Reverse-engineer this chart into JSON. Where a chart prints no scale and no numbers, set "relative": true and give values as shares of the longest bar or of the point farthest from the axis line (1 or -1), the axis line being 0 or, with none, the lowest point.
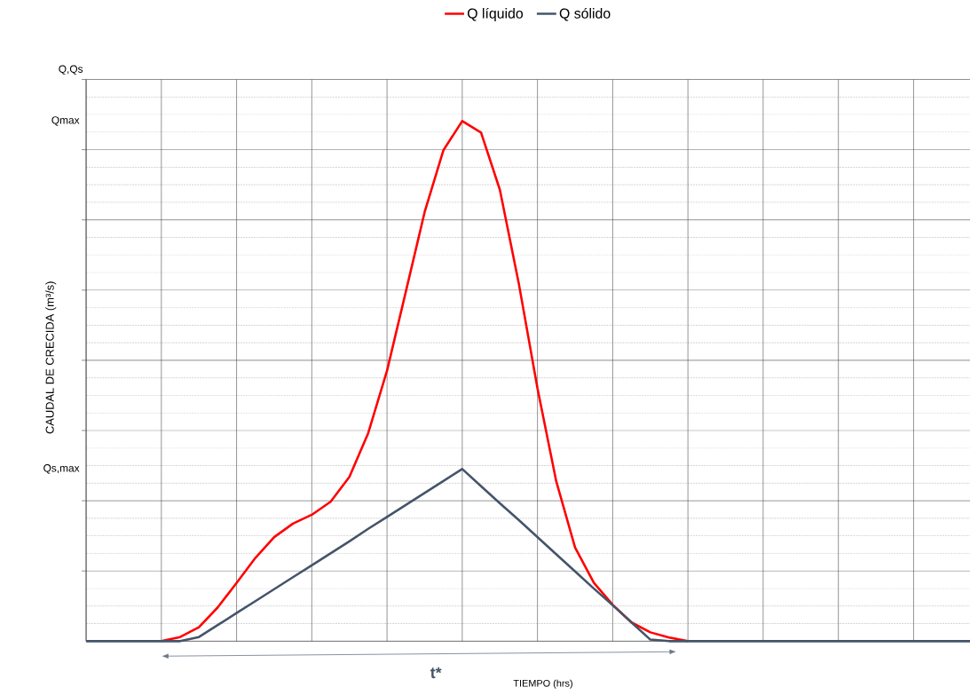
{
  "chart_data": {
    "type": "line",
    "relative": true,
    "xlabel": "TIEMPO (hrs)",
    "ylabel": "CAUDAL DE CRECIDA (m³/s)",
    "categories": [
      null,
      null,
      null,
      null,
      null,
      null,
      null,
      null,
      null,
      null,
      null,
      null,
      null,
      null,
      null,
      null,
      null,
      null,
      null,
      null,
      null,
      null,
      null,
      null,
      null,
      null,
      null,
      null,
      null,
      null,
      null,
      null,
      null,
      null,
      null,
      null,
      null,
      null,
      null,
      null,
      null,
      null,
      null,
      null,
      null,
      null,
      null,
      null
    ],
    "series": [
      {
        "name": "Q líquido",
        "color": "#ff0000",
        "values": [
          null,
          null,
          null,
          null,
          0,
          0.008,
          0.027,
          0.065,
          0.112,
          0.16,
          0.2,
          0.226,
          0.243,
          0.268,
          0.316,
          0.4,
          0.52,
          0.672,
          0.825,
          0.944,
          1,
          0.978,
          0.868,
          0.689,
          0.486,
          0.307,
          0.18,
          0.112,
          0.07,
          0.036,
          0.017,
          0.007,
          0,
          null,
          null,
          null,
          null,
          null,
          null,
          null,
          null,
          null,
          null,
          null,
          null,
          null,
          null,
          null
        ]
      },
      {
        "name": "Q sólido",
        "color": "#44546a",
        "values": [
          0,
          0,
          0,
          0,
          0,
          0,
          0.008,
          0.031,
          0.054,
          0.077,
          0.1,
          0.123,
          0.146,
          0.169,
          0.192,
          0.216,
          0.239,
          0.262,
          0.285,
          0.308,
          0.331,
          0.298,
          0.265,
          0.233,
          0.2,
          0.167,
          0.134,
          0.101,
          0.069,
          0.036,
          0.003,
          0,
          0,
          0,
          0,
          0,
          0,
          0,
          0,
          0,
          0,
          0,
          0,
          0,
          0,
          0,
          0,
          0
        ]
      }
    ],
    "annotations": [
      "Q,Qs",
      "Qmax",
      "Qs,max",
      "t*"
    ],
    "grid": true,
    "legend": "top",
    "marker": "none",
    "line_style": "solid"
  }
}
